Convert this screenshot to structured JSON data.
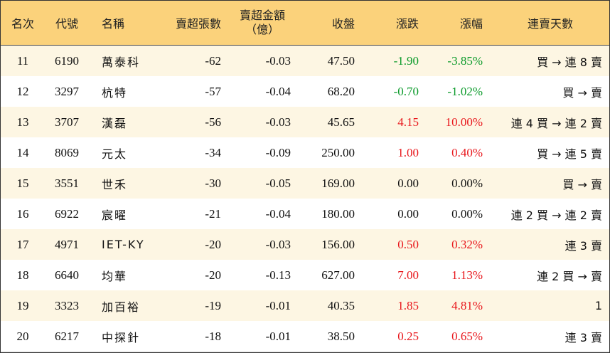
{
  "headers": {
    "rank": "名次",
    "code": "代號",
    "name": "名稱",
    "net_sell_lots": "賣超張數",
    "net_sell_amount_line1": "賣超金額",
    "net_sell_amount_line2": "（億）",
    "close": "收盤",
    "change": "漲跌",
    "change_pct": "漲幅",
    "streak": "連賣天數"
  },
  "colors": {
    "header_bg": "#fbd27b",
    "row_alt_bg": "#fdf6e3",
    "up": "#e8161b",
    "down": "#0a9a2a",
    "flat": "#111111"
  },
  "rows": [
    {
      "rank": "11",
      "code": "6190",
      "name": "萬泰科",
      "net_sell_lots": "-62",
      "net_sell_amount": "-0.03",
      "close": "47.50",
      "change": "-1.90",
      "change_pct": "-3.85%",
      "direction": "down",
      "streak": "買 → 連 8 賣"
    },
    {
      "rank": "12",
      "code": "3297",
      "name": "杭特",
      "net_sell_lots": "-57",
      "net_sell_amount": "-0.04",
      "close": "68.20",
      "change": "-0.70",
      "change_pct": "-1.02%",
      "direction": "down",
      "streak": "買 → 賣"
    },
    {
      "rank": "13",
      "code": "3707",
      "name": "漢磊",
      "net_sell_lots": "-56",
      "net_sell_amount": "-0.03",
      "close": "45.65",
      "change": "4.15",
      "change_pct": "10.00%",
      "direction": "up",
      "streak": "連 4 買 → 連 2 賣"
    },
    {
      "rank": "14",
      "code": "8069",
      "name": "元太",
      "net_sell_lots": "-34",
      "net_sell_amount": "-0.09",
      "close": "250.00",
      "change": "1.00",
      "change_pct": "0.40%",
      "direction": "up",
      "streak": "買 → 連 5 賣"
    },
    {
      "rank": "15",
      "code": "3551",
      "name": "世禾",
      "net_sell_lots": "-30",
      "net_sell_amount": "-0.05",
      "close": "169.00",
      "change": "0.00",
      "change_pct": "0.00%",
      "direction": "flat",
      "streak": "買 → 賣"
    },
    {
      "rank": "16",
      "code": "6922",
      "name": "宸曜",
      "net_sell_lots": "-21",
      "net_sell_amount": "-0.04",
      "close": "180.00",
      "change": "0.00",
      "change_pct": "0.00%",
      "direction": "flat",
      "streak": "連 2 買 → 連 2 賣"
    },
    {
      "rank": "17",
      "code": "4971",
      "name": "IET-KY",
      "net_sell_lots": "-20",
      "net_sell_amount": "-0.03",
      "close": "156.00",
      "change": "0.50",
      "change_pct": "0.32%",
      "direction": "up",
      "streak": "連 3 賣"
    },
    {
      "rank": "18",
      "code": "6640",
      "name": "均華",
      "net_sell_lots": "-20",
      "net_sell_amount": "-0.13",
      "close": "627.00",
      "change": "7.00",
      "change_pct": "1.13%",
      "direction": "up",
      "streak": "連 2 買 → 賣"
    },
    {
      "rank": "19",
      "code": "3323",
      "name": "加百裕",
      "net_sell_lots": "-19",
      "net_sell_amount": "-0.01",
      "close": "40.35",
      "change": "1.85",
      "change_pct": "4.81%",
      "direction": "up",
      "streak": "1"
    },
    {
      "rank": "20",
      "code": "6217",
      "name": "中探針",
      "net_sell_lots": "-18",
      "net_sell_amount": "-0.01",
      "close": "38.50",
      "change": "0.25",
      "change_pct": "0.65%",
      "direction": "up",
      "streak": "連 3 賣"
    }
  ]
}
